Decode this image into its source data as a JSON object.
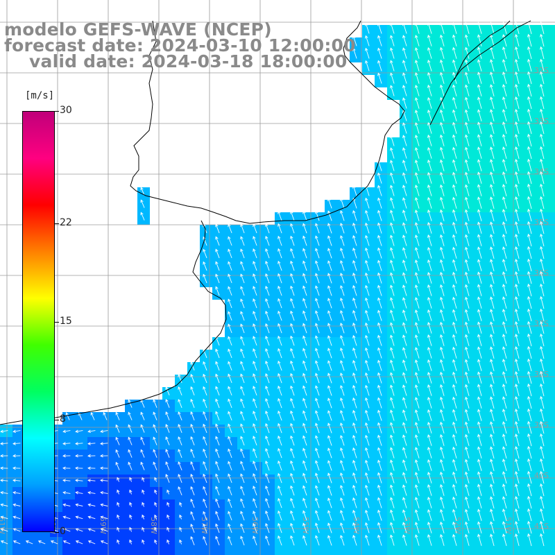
{
  "title": {
    "line1": "modelo GEFS-WAVE (NCEP)",
    "line2": "forecast date: 2024-03-10 12:00:00",
    "line3": "valid date: 2024-03-18 18:00:00"
  },
  "colorbar": {
    "unit": "[m/s]",
    "ticks": [
      {
        "label": "30",
        "value": 30
      },
      {
        "label": "22",
        "value": 22
      },
      {
        "label": "15",
        "value": 15
      },
      {
        "label": "8",
        "value": 8
      },
      {
        "label": "0",
        "value": 0
      }
    ],
    "colors": [
      "#0000ff",
      "#00a0ff",
      "#00ffff",
      "#00ff60",
      "#40ff00",
      "#ffff00",
      "#ff8000",
      "#ff0000",
      "#ff0080",
      "#c0007a"
    ]
  },
  "map": {
    "lat_labels": [
      "32S",
      "33S",
      "34S",
      "35S",
      "36S",
      "37S",
      "38S",
      "39S",
      "40S",
      "41S"
    ],
    "lon_labels": [
      "61W",
      "60W",
      "59W",
      "58W",
      "57W",
      "56W",
      "55W",
      "54W",
      "53W",
      "52W",
      "51W"
    ],
    "field_color_ocean": "#00e8f0",
    "field_color_low": "#0060ff"
  }
}
